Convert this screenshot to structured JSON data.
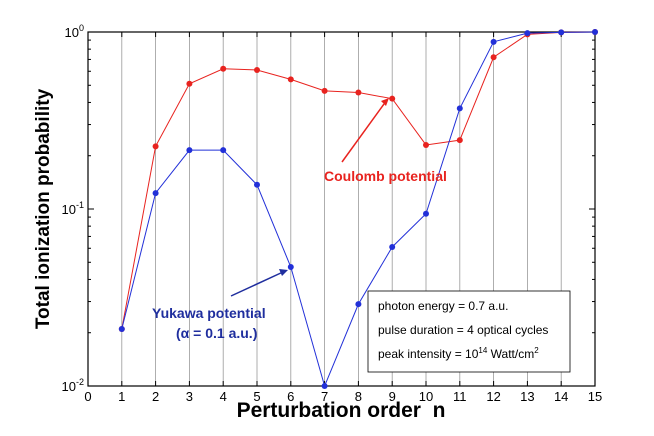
{
  "chart_data": {
    "type": "line",
    "title": "",
    "xlabel": "Perturbation order  n",
    "ylabel": "Total ionization probability",
    "xlim": [
      0,
      15
    ],
    "ylim": [
      0.01,
      1
    ],
    "yscale": "log",
    "grid": "vertical",
    "x_ticks": [
      "0",
      "1",
      "2",
      "3",
      "4",
      "5",
      "6",
      "7",
      "8",
      "9",
      "10",
      "11",
      "12",
      "13",
      "14",
      "15"
    ],
    "y_ticks": [
      {
        "base": "10",
        "exp": "0",
        "value": 1
      },
      {
        "base": "10",
        "exp": "-1",
        "value": 0.1
      },
      {
        "base": "10",
        "exp": "-2",
        "value": 0.01
      }
    ],
    "series": [
      {
        "key": "coulomb",
        "color": "#e8231f",
        "x": [
          1,
          2,
          3,
          4,
          5,
          6,
          7,
          8,
          9,
          10,
          11,
          12,
          13,
          14,
          15
        ],
        "values": [
          0.021,
          0.226,
          0.51,
          0.62,
          0.61,
          0.54,
          0.465,
          0.455,
          0.42,
          0.23,
          0.245,
          0.72,
          0.97,
          0.995,
          1.0
        ]
      },
      {
        "key": "yukawa",
        "color": "#2230d8",
        "x": [
          1,
          2,
          3,
          4,
          5,
          6,
          7,
          8,
          9,
          10,
          11,
          12,
          13,
          14,
          15
        ],
        "values": [
          0.021,
          0.123,
          0.215,
          0.215,
          0.137,
          0.047,
          0.01,
          0.029,
          0.061,
          0.094,
          0.37,
          0.88,
          0.985,
          0.995,
          1.0
        ]
      }
    ],
    "annotations": {
      "coulomb": {
        "text": "Coulomb potential",
        "color": "#e8231f",
        "arrow_to": {
          "x": 9,
          "y": 0.42
        }
      },
      "yukawa": {
        "line1": "Yukawa potential",
        "line2": "(α = 0.1 a.u.)",
        "color": "#1f2e9e",
        "arrow_to": {
          "x": 6,
          "y": 0.047
        }
      }
    },
    "info_box": {
      "line1": "photon energy = 0.7 a.u.",
      "line2": "pulse duration = 4 optical cycles",
      "line3_prefix": "peak intensity = 10",
      "line3_exp": "14",
      "line3_unit": " Watt/cm",
      "line3_unit_exp": "2"
    }
  }
}
